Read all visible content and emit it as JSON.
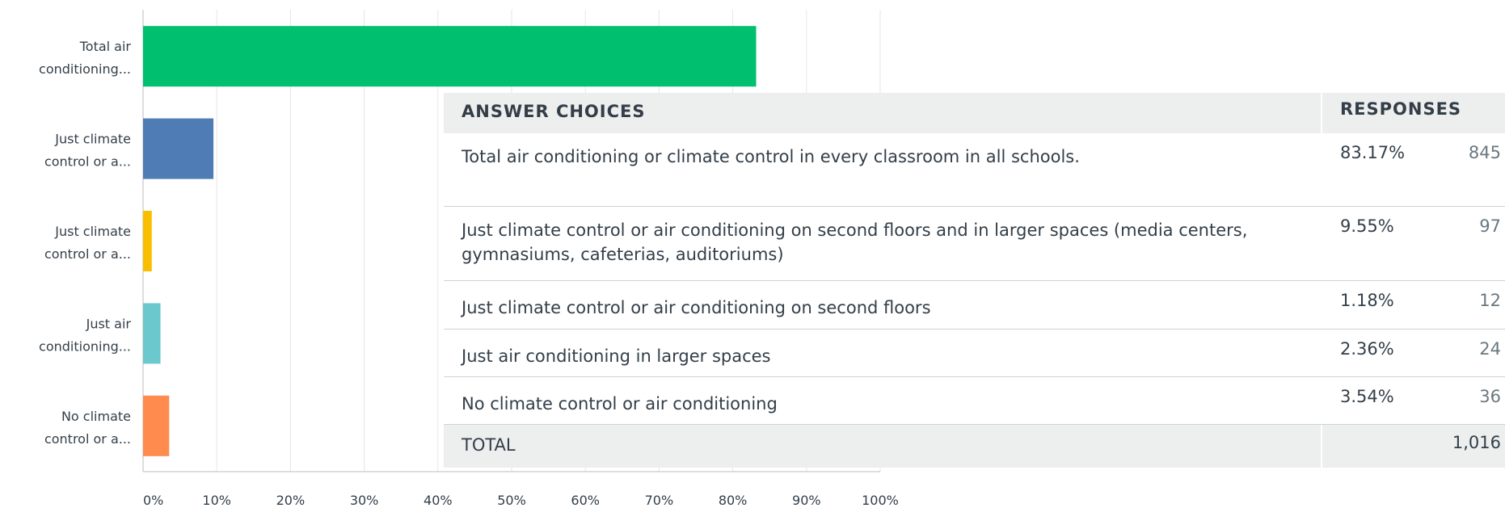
{
  "chart_data": {
    "type": "bar",
    "orientation": "horizontal",
    "categories": [
      [
        "Total air",
        "conditioning..."
      ],
      [
        "Just climate",
        "control or a..."
      ],
      [
        "Just climate",
        "control or a..."
      ],
      [
        "Just air",
        "conditioning..."
      ],
      [
        "No climate",
        "control or a..."
      ]
    ],
    "values": [
      83.17,
      9.55,
      1.18,
      2.36,
      3.54
    ],
    "colors": [
      "#00bf6f",
      "#507cb6",
      "#f9be00",
      "#6bc8cd",
      "#ff8b4f"
    ],
    "xlim": [
      0,
      100
    ],
    "xticks": [
      {
        "value": 0,
        "label": "0%"
      },
      {
        "value": 10,
        "label": "10%"
      },
      {
        "value": 20,
        "label": "20%"
      },
      {
        "value": 30,
        "label": "30%"
      },
      {
        "value": 40,
        "label": "40%"
      },
      {
        "value": 50,
        "label": "50%"
      },
      {
        "value": 60,
        "label": "60%"
      },
      {
        "value": 70,
        "label": "70%"
      },
      {
        "value": 80,
        "label": "80%"
      },
      {
        "value": 90,
        "label": "90%"
      },
      {
        "value": 100,
        "label": "100%"
      }
    ],
    "grid": true
  },
  "table": {
    "headers": [
      "ANSWER CHOICES",
      "RESPONSES"
    ],
    "rows": [
      [
        "Total air conditioning or climate control in every classroom in all schools.",
        "83.17%",
        "845"
      ],
      [
        "Just climate control or air conditioning on second floors and in larger spaces (media centers, gymnasiums, cafeterias, auditoriums)",
        "9.55%",
        "97"
      ],
      [
        "Just climate control or air conditioning on second floors",
        "1.18%",
        "12"
      ],
      [
        "Just air conditioning in larger spaces",
        "2.36%",
        "24"
      ],
      [
        "No climate control or air conditioning",
        "3.54%",
        "36"
      ]
    ],
    "total": [
      "TOTAL",
      "1,016"
    ]
  }
}
